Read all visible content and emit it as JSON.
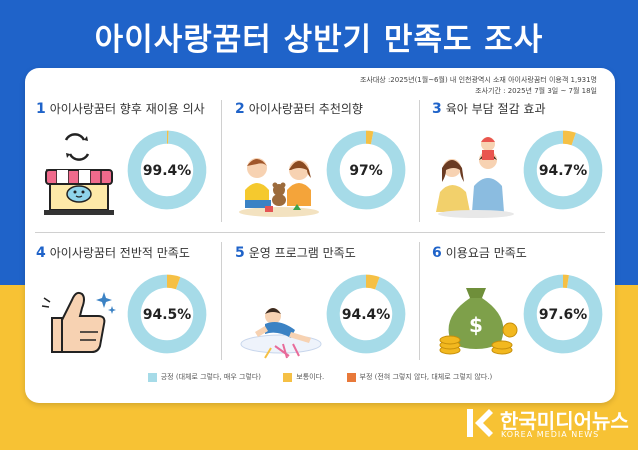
{
  "title": "아이사랑꿈터 상반기 만족도 조사",
  "survey_meta": {
    "target": "조사대상 :2025년(1월~6월) 내 인천광역시 소재  아이사랑꿈터 이용객 1,931명",
    "period": "조사기간 : 2025년 7월 3일 ~ 7월 18일"
  },
  "colors": {
    "positive": "#a6dbe8",
    "neutral": "#f5c045",
    "negative": "#e8793a",
    "accent": "#1f63c9"
  },
  "chart_data": [
    {
      "type": "pie",
      "number": "1",
      "title": "아이사랑꿈터 향후 재이용 의사",
      "value_label": "99.4%",
      "values": [
        99.4,
        0.6,
        0
      ],
      "categories": [
        "긍정",
        "보통",
        "부정"
      ]
    },
    {
      "type": "pie",
      "number": "2",
      "title": "아이사랑꿈터 추천의향",
      "value_label": "97%",
      "values": [
        97.0,
        3.0,
        0
      ],
      "categories": [
        "긍정",
        "보통",
        "부정"
      ]
    },
    {
      "type": "pie",
      "number": "3",
      "title": "육아 부담 절감 효과",
      "value_label": "94.7%",
      "values": [
        94.7,
        5.3,
        0
      ],
      "categories": [
        "긍정",
        "보통",
        "부정"
      ]
    },
    {
      "type": "pie",
      "number": "4",
      "title": "아이사랑꿈터 전반적 만족도",
      "value_label": "94.5%",
      "values": [
        94.5,
        5.5,
        0
      ],
      "categories": [
        "긍정",
        "보통",
        "부정"
      ]
    },
    {
      "type": "pie",
      "number": "5",
      "title": "운영 프로그램 만족도",
      "value_label": "94.4%",
      "values": [
        94.4,
        5.6,
        0
      ],
      "categories": [
        "긍정",
        "보통",
        "부정"
      ]
    },
    {
      "type": "pie",
      "number": "6",
      "title": "이용요금 만족도",
      "value_label": "97.6%",
      "values": [
        97.6,
        2.4,
        0
      ],
      "categories": [
        "긍정",
        "보통",
        "부정"
      ]
    }
  ],
  "legend": [
    {
      "label": "긍정 (대체로 그렇다, 매우 그렇다)",
      "color": "#a6dbe8"
    },
    {
      "label": "보통이다.",
      "color": "#f5c045"
    },
    {
      "label": "부정 (전혀 그렇지 않다, 대체로 그렇지 않다.)",
      "color": "#e8793a"
    }
  ],
  "logo": {
    "name": "한국미디어뉴스",
    "sub": "KOREA MEDIA NEWS"
  }
}
